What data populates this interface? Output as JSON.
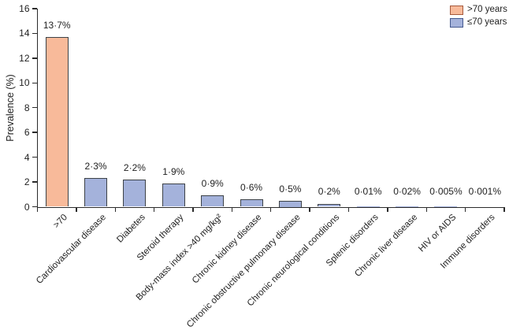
{
  "chart_data": {
    "type": "bar",
    "title": "",
    "xlabel": "",
    "ylabel": "Prevalence (%)",
    "ylim": [
      0,
      16
    ],
    "yticks": [
      0,
      2,
      4,
      6,
      8,
      10,
      12,
      14,
      16
    ],
    "grid": false,
    "legend_position": "top-right",
    "categories": [
      ">70",
      "Cardiovascular disease",
      "Diabetes",
      "Steroid therapy",
      "Body-mass index >40 mg/kg²",
      "Chronic kidney disease",
      "Chronic obstructive pulmonary disease",
      "Chronic neurological conditions",
      "Splenic disorders",
      "Chronic liver disease",
      "HIV or AIDS",
      "Immune disorders"
    ],
    "values": [
      13.7,
      2.3,
      2.2,
      1.9,
      0.9,
      0.6,
      0.5,
      0.2,
      0.01,
      0.02,
      0.005,
      0.001
    ],
    "value_labels": [
      "13·7%",
      "2·3%",
      "2·2%",
      "1·9%",
      "0·9%",
      "0·6%",
      "0·5%",
      "0·2%",
      "0·01%",
      "0·02%",
      "0·005%",
      "0·001%"
    ],
    "groups": [
      ">70 years",
      "≤70 years",
      "≤70 years",
      "≤70 years",
      "≤70 years",
      "≤70 years",
      "≤70 years",
      "≤70 years",
      "≤70 years",
      "≤70 years",
      "≤70 years",
      "≤70 years"
    ],
    "legend": [
      {
        "label": ">70 years",
        "fill": "#f8ba9a",
        "border": "#a5593c"
      },
      {
        "label": "≤70 years",
        "fill": "#a4b2db",
        "border": "#44598f"
      }
    ],
    "colors": {
      "bar_border": "#3d4247",
      "axis": "#2b2b2b",
      "text": "#1f1f1f",
      "background": "#ffffff"
    }
  }
}
